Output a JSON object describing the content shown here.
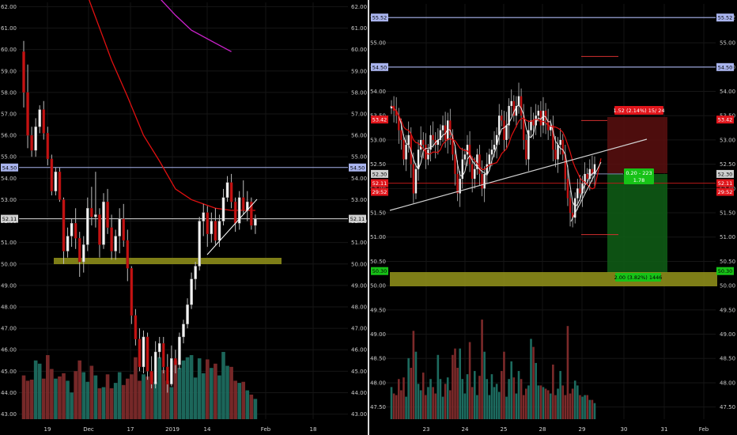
{
  "chart_data": [
    {
      "type": "candlestick",
      "panel": "daily",
      "ylim": [
        42.8,
        62.2
      ],
      "y_ticks": [
        "43.00",
        "44.00",
        "45.00",
        "46.00",
        "47.00",
        "48.00",
        "49.00",
        "50.00",
        "51.00",
        "52.00",
        "53.00",
        "54.00",
        "55.00",
        "56.00",
        "57.00",
        "58.00",
        "59.00",
        "60.00",
        "61.00",
        "62.00"
      ],
      "x_ticks": [
        "19",
        "Dec",
        "17",
        "2019",
        "14",
        "Feb",
        "18"
      ],
      "price_tags": {
        "left": [
          "54.50",
          "52.11"
        ],
        "right": [
          "54.50",
          "52.11"
        ]
      },
      "horizontal_levels": [
        54.5,
        52.11
      ],
      "support_zone": [
        50.0,
        50.3
      ],
      "trendline": [
        [
          50.45,
          53.0
        ]
      ],
      "candles": [
        [
          59.9,
          60.4,
          57.3,
          58.0
        ],
        [
          58.0,
          59.3,
          55.4,
          56.0
        ],
        [
          56.0,
          56.4,
          55.0,
          55.3
        ],
        [
          55.3,
          56.8,
          55.0,
          56.4
        ],
        [
          56.4,
          57.4,
          56.1,
          57.2
        ],
        [
          57.2,
          57.6,
          55.8,
          56.1
        ],
        [
          56.1,
          56.4,
          54.6,
          54.9
        ],
        [
          54.9,
          55.1,
          53.2,
          53.4
        ],
        [
          53.4,
          54.5,
          53.2,
          54.3
        ],
        [
          54.3,
          54.5,
          52.9,
          53.0
        ],
        [
          53.0,
          53.1,
          50.0,
          50.6
        ],
        [
          50.6,
          51.7,
          50.3,
          51.3
        ],
        [
          51.3,
          52.1,
          50.8,
          51.9
        ],
        [
          51.9,
          52.6,
          50.7,
          51.2
        ],
        [
          51.2,
          51.5,
          49.4,
          50.1
        ],
        [
          50.1,
          51.3,
          49.6,
          50.9
        ],
        [
          50.9,
          53.1,
          50.6,
          52.6
        ],
        [
          52.6,
          53.6,
          51.8,
          52.2
        ],
        [
          52.2,
          54.3,
          51.7,
          52.3
        ],
        [
          52.3,
          52.6,
          50.3,
          50.9
        ],
        [
          50.9,
          53.3,
          50.7,
          52.9
        ],
        [
          52.9,
          53.5,
          51.4,
          51.7
        ],
        [
          51.7,
          52.3,
          50.2,
          50.6
        ],
        [
          50.6,
          51.6,
          50.2,
          51.3
        ],
        [
          51.3,
          52.6,
          50.5,
          52.1
        ],
        [
          52.1,
          52.8,
          50.8,
          51.1
        ],
        [
          51.1,
          51.6,
          49.2,
          49.8
        ],
        [
          49.8,
          49.9,
          47.2,
          47.6
        ],
        [
          47.6,
          47.9,
          46.2,
          46.5
        ],
        [
          46.5,
          47.0,
          45.0,
          45.2
        ],
        [
          45.2,
          46.9,
          44.9,
          46.6
        ],
        [
          46.6,
          46.8,
          44.6,
          45.0
        ],
        [
          45.0,
          45.7,
          44.2,
          44.4
        ],
        [
          44.4,
          46.4,
          44.2,
          45.9
        ],
        [
          45.9,
          46.6,
          45.6,
          46.3
        ],
        [
          46.3,
          46.6,
          44.9,
          45.2
        ],
        [
          45.2,
          45.8,
          44.0,
          44.4
        ],
        [
          44.4,
          46.2,
          44.3,
          45.6
        ],
        [
          45.6,
          46.0,
          44.9,
          45.3
        ],
        [
          45.3,
          46.8,
          45.1,
          46.6
        ],
        [
          46.6,
          47.4,
          46.3,
          47.2
        ],
        [
          47.2,
          48.4,
          47.0,
          48.1
        ],
        [
          48.1,
          49.6,
          47.9,
          49.3
        ],
        [
          49.3,
          50.1,
          48.8,
          49.9
        ],
        [
          49.9,
          52.2,
          49.7,
          52.0
        ],
        [
          52.0,
          52.8,
          51.3,
          52.4
        ],
        [
          52.4,
          52.7,
          50.8,
          51.4
        ],
        [
          51.4,
          52.4,
          51.0,
          52.0
        ],
        [
          52.0,
          52.6,
          50.9,
          51.1
        ],
        [
          51.1,
          52.3,
          50.8,
          52.0
        ],
        [
          52.0,
          53.5,
          51.8,
          53.1
        ],
        [
          53.1,
          54.1,
          52.9,
          53.8
        ],
        [
          53.8,
          54.2,
          52.6,
          52.9
        ],
        [
          52.9,
          53.1,
          51.5,
          51.9
        ],
        [
          51.9,
          53.4,
          51.6,
          53.1
        ],
        [
          53.1,
          53.9,
          52.3,
          52.5
        ],
        [
          52.5,
          53.4,
          52.0,
          52.9
        ],
        [
          52.9,
          53.1,
          51.6,
          51.8
        ],
        [
          51.8,
          52.3,
          51.4,
          52.1
        ]
      ],
      "volumes": [
        41,
        36,
        37,
        55,
        52,
        38,
        60,
        47,
        38,
        40,
        43,
        36,
        25,
        45,
        55,
        44,
        35,
        50,
        41,
        29,
        30,
        42,
        29,
        34,
        44,
        32,
        38,
        42,
        58,
        36,
        42,
        40,
        44,
        35,
        58,
        46,
        36,
        30,
        55,
        48,
        55,
        58,
        60,
        39,
        57,
        43,
        56,
        48,
        52,
        41,
        63,
        50,
        49,
        36,
        34,
        35,
        27,
        23,
        19
      ],
      "moving_averages": [
        {
          "color": "#e01010",
          "points": [
            [
              0,
              67.0
            ],
            [
              6,
              66.2
            ],
            [
              10,
              65.0
            ],
            [
              14,
              63.5
            ],
            [
              18,
              61.5
            ],
            [
              22,
              59.5
            ],
            [
              26,
              57.8
            ],
            [
              30,
              56.0
            ],
            [
              34,
              54.8
            ],
            [
              38,
              53.5
            ],
            [
              42,
              53.0
            ],
            [
              48,
              52.6
            ],
            [
              52,
              52.5
            ],
            [
              58,
              52.5
            ]
          ]
        },
        {
          "color": "#cc22cc",
          "points": [
            [
              22,
              65.5
            ],
            [
              26,
              64.5
            ],
            [
              30,
              63.3
            ],
            [
              34,
              62.4
            ],
            [
              38,
              61.6
            ],
            [
              42,
              60.9
            ],
            [
              48,
              60.3
            ],
            [
              52,
              59.9
            ]
          ]
        }
      ]
    },
    {
      "type": "candlestick",
      "panel": "intraday",
      "ylim": [
        47.25,
        55.8
      ],
      "y_ticks": [
        "47.50",
        "48.00",
        "48.50",
        "49.00",
        "49.50",
        "50.00",
        "50.50",
        "51.00",
        "51.50",
        "52.00",
        "52.50",
        "53.00",
        "53.50",
        "54.00",
        "54.50",
        "55.00",
        "55.52"
      ],
      "x_ticks": [
        "23",
        "24",
        "25",
        "28",
        "29",
        "30",
        "31",
        "Feb"
      ],
      "price_tags": {
        "left": [
          "55.52",
          "54.50",
          "53.42",
          "52.30",
          "52.11",
          "29:52",
          "50.30"
        ],
        "right": [
          "55.52",
          "54.50",
          "53.42",
          "52.30",
          "52.11",
          "29:52",
          "50.30"
        ]
      },
      "horizontal_levels": [
        55.52,
        54.5,
        52.11
      ],
      "support_zone": [
        50.0,
        50.3
      ],
      "target_zone": [
        52.3,
        53.42
      ],
      "stop_zone": [
        50.3,
        52.11
      ],
      "risk_reward": {
        "risk_label": "1.52 (2.14%) 15/ 24",
        "ratio_label": "0.20 - 223",
        "ratio_sub": "1.78",
        "reward_label": "2.00 (3.82%) 1446"
      },
      "trendline": [
        [
          51.55,
          52.95
        ]
      ],
      "closes": [
        53.7,
        53.6,
        53.5,
        53.2,
        53.0,
        52.6,
        52.9,
        53.1,
        52.5,
        51.9,
        52.4,
        52.8,
        53.0,
        52.9,
        52.6,
        52.8,
        53.1,
        53.0,
        52.9,
        53.0,
        53.2,
        53.3,
        53.0,
        53.4,
        53.1,
        52.7,
        52.3,
        51.9,
        52.2,
        52.6,
        52.7,
        52.9,
        52.5,
        52.2,
        52.4,
        52.7,
        52.3,
        52.0,
        52.3,
        52.5,
        52.7,
        52.8,
        52.9,
        53.1,
        53.5,
        53.4,
        53.0,
        53.3,
        53.7,
        53.8,
        53.5,
        53.7,
        53.9,
        53.5,
        53.0,
        52.6,
        53.2,
        53.4,
        53.3,
        53.5,
        53.6,
        53.3,
        53.6,
        53.4,
        53.2,
        53.3,
        52.8,
        52.6,
        52.9,
        53.0,
        52.7,
        52.2,
        51.8,
        51.5,
        51.4,
        51.8,
        52.0,
        51.9,
        52.1,
        52.3,
        52.2,
        52.4,
        52.3,
        52.5
      ],
      "volumes": [
        20,
        16,
        15,
        25,
        18,
        26,
        14,
        38,
        32,
        55,
        42,
        22,
        18,
        29,
        15,
        20,
        25,
        20,
        16,
        40,
        25,
        14,
        22,
        26,
        18,
        40,
        44,
        32,
        44,
        25,
        16,
        28,
        48,
        20,
        30,
        15,
        27,
        62,
        42,
        25,
        15,
        28,
        20,
        22,
        17,
        30,
        42,
        14,
        25,
        36,
        26,
        16,
        30,
        25,
        15,
        19,
        21,
        50,
        45,
        35,
        21,
        21,
        20,
        19,
        18,
        16,
        34,
        15,
        19,
        30,
        21,
        15,
        58,
        16,
        19,
        24,
        21,
        15,
        14,
        15,
        15,
        12,
        12,
        10
      ]
    }
  ]
}
